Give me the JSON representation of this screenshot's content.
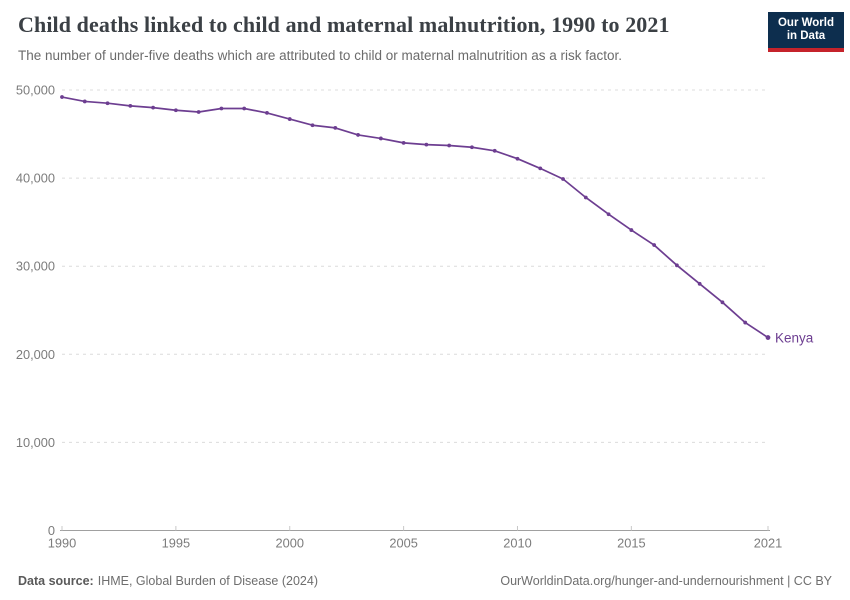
{
  "header": {
    "title": "Child deaths linked to child and maternal malnutrition, 1990 to 2021",
    "subtitle": "The number of under-five deaths which are attributed to child or maternal malnutrition as a risk factor.",
    "logo": {
      "line1": "Our World",
      "line2": "in Data",
      "bg_color": "#0d2e4e",
      "stripe_color": "#c5232b"
    }
  },
  "chart_data": {
    "type": "line",
    "title": "Child deaths linked to child and maternal malnutrition, 1990 to 2021",
    "subtitle": "The number of under-five deaths which are attributed to child or maternal malnutrition as a risk factor.",
    "x": [
      1990,
      1991,
      1992,
      1993,
      1994,
      1995,
      1996,
      1997,
      1998,
      1999,
      2000,
      2001,
      2002,
      2003,
      2004,
      2005,
      2006,
      2007,
      2008,
      2009,
      2010,
      2011,
      2012,
      2013,
      2014,
      2015,
      2016,
      2017,
      2018,
      2019,
      2020,
      2021
    ],
    "series": [
      {
        "name": "Kenya",
        "color": "#6d3e91",
        "values": [
          49200,
          48700,
          48500,
          48200,
          48000,
          47700,
          47500,
          47900,
          47900,
          47400,
          46700,
          46000,
          45700,
          44900,
          44500,
          44000,
          43800,
          43700,
          43500,
          43100,
          42200,
          41100,
          39900,
          37800,
          35900,
          34100,
          32400,
          30100,
          28000,
          25900,
          23600,
          21900
        ]
      }
    ],
    "xlabel": "",
    "ylabel": "",
    "x_ticks": [
      1990,
      1995,
      2000,
      2005,
      2010,
      2015,
      2021
    ],
    "y_ticks": [
      0,
      10000,
      20000,
      30000,
      40000,
      50000
    ],
    "xlim": [
      1990,
      2021
    ],
    "ylim": [
      0,
      50000
    ],
    "grid": "horizontal-dashed",
    "legend_position": "end-of-line-label",
    "colors": {
      "gridline": "#dcdcdc",
      "axis_line": "#a0a0a0",
      "tick_mark": "#c8c8c8",
      "tick_label": "#7c7c7c"
    }
  },
  "footer": {
    "datasource_label": "Data source:",
    "datasource_value": "IHME, Global Burden of Disease (2024)",
    "attribution": "OurWorldinData.org/hunger-and-undernourishment | CC BY"
  }
}
